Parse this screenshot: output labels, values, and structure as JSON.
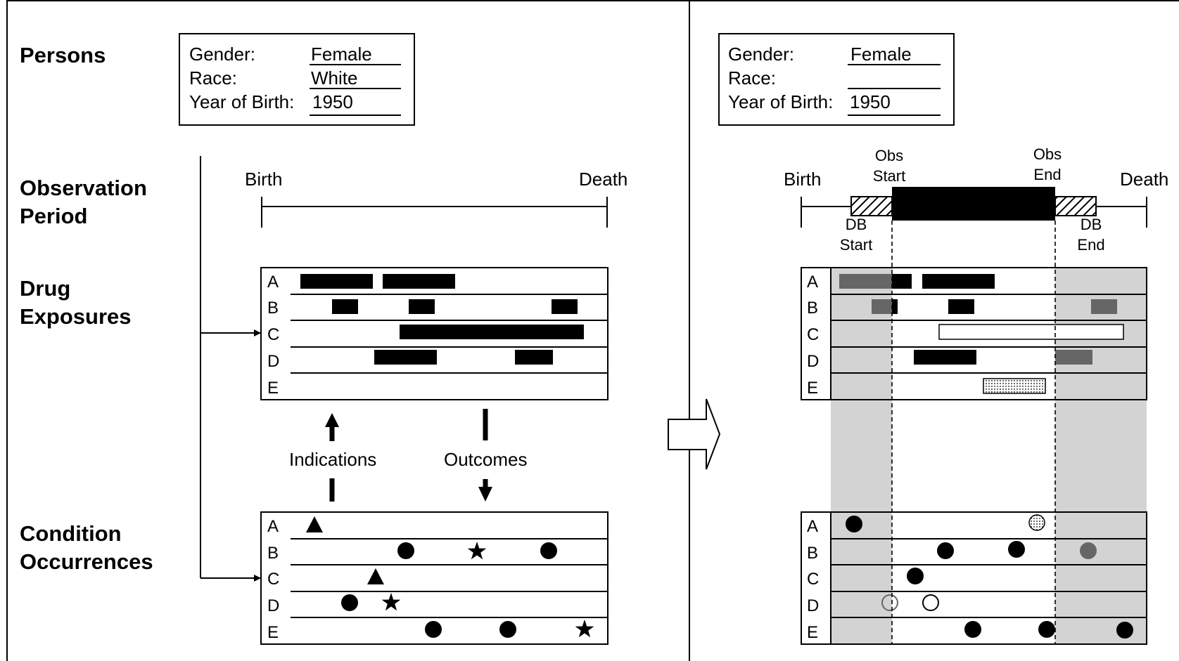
{
  "sections": {
    "persons": "Persons",
    "observation_period": [
      "Observation",
      "Period"
    ],
    "drug_exposures": [
      "Drug",
      "Exposures"
    ],
    "condition_occurrences": [
      "Condition",
      "Occurrences"
    ]
  },
  "left_person": {
    "gender_label": "Gender:",
    "gender_value": "Female",
    "race_label": "Race:",
    "race_value": "White",
    "yob_label": "Year of Birth:",
    "yob_value": "1950"
  },
  "right_person": {
    "gender_label": "Gender:",
    "gender_value": "Female",
    "race_label": "Race:",
    "race_value": "",
    "yob_label": "Year of Birth:",
    "yob_value": "1950"
  },
  "left_timeline": {
    "birth": "Birth",
    "death": "Death"
  },
  "right_timeline": {
    "birth": "Birth",
    "death": "Death",
    "obs_start": [
      "Obs",
      "Start"
    ],
    "obs_end": [
      "Obs",
      "End"
    ],
    "db_start": [
      "DB",
      "Start"
    ],
    "db_end": [
      "DB",
      "End"
    ]
  },
  "row_labels": [
    "A",
    "B",
    "C",
    "D",
    "E"
  ],
  "arrows": {
    "indications": "Indications",
    "outcomes": "Outcomes"
  },
  "colors": {
    "observed": "#000000",
    "unobserved": "#666666",
    "shade": "#d3d3d3"
  }
}
